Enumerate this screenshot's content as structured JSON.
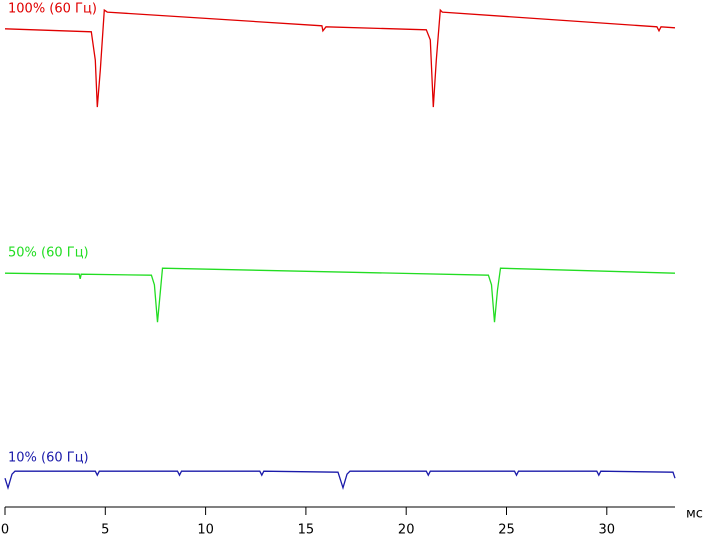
{
  "chart_data": {
    "type": "line",
    "x_label": "мс",
    "xlim": [
      0,
      33.4
    ],
    "xticks": [
      0,
      5,
      10,
      15,
      20,
      25,
      30
    ],
    "ylim": [
      0,
      100
    ],
    "series": [
      {
        "name": "100% (60 Гц)",
        "color": "#e00000",
        "x": [
          0,
          4.3,
          4.5,
          4.6,
          4.75,
          4.95,
          5.1,
          15.8,
          15.85,
          16,
          21,
          21.2,
          21.35,
          21.5,
          21.7,
          21.8,
          32.5,
          32.6,
          32.7,
          33.4
        ],
        "values": [
          94.3,
          93.7,
          88.1,
          78.8,
          86.1,
          98.0,
          97.6,
          94.9,
          93.9,
          94.7,
          94.1,
          92.1,
          78.8,
          88.1,
          98.0,
          97.6,
          94.7,
          93.9,
          94.7,
          94.5
        ]
      },
      {
        "name": "50% (60 Гц)",
        "color": "#22dd22",
        "x": [
          0,
          3.7,
          3.75,
          3.8,
          7.3,
          7.45,
          7.6,
          7.75,
          7.85,
          24.1,
          24.25,
          24.4,
          24.55,
          24.7,
          33.4
        ],
        "values": [
          45.9,
          45.7,
          44.8,
          45.7,
          45.5,
          43.6,
          36.2,
          42.6,
          46.9,
          45.5,
          43.6,
          36.2,
          42.6,
          46.9,
          45.9
        ]
      },
      {
        "name": "10% (60 Гц)",
        "color": "#1a1aaa",
        "x": [
          0,
          0.15,
          0.35,
          0.5,
          4.5,
          4.6,
          4.7,
          8.6,
          8.7,
          8.8,
          12.7,
          12.8,
          12.9,
          16.6,
          16.85,
          17.05,
          17.2,
          21,
          21.1,
          21.2,
          25.4,
          25.5,
          25.6,
          29.5,
          29.6,
          29.7,
          33.3,
          33.4
        ],
        "values": [
          5.3,
          3.4,
          6.1,
          6.7,
          6.7,
          5.9,
          6.7,
          6.7,
          5.9,
          6.7,
          6.7,
          5.9,
          6.7,
          6.5,
          3.4,
          6.1,
          6.7,
          6.7,
          5.9,
          6.7,
          6.7,
          5.9,
          6.7,
          6.7,
          5.9,
          6.7,
          6.5,
          5.3
        ]
      }
    ]
  }
}
